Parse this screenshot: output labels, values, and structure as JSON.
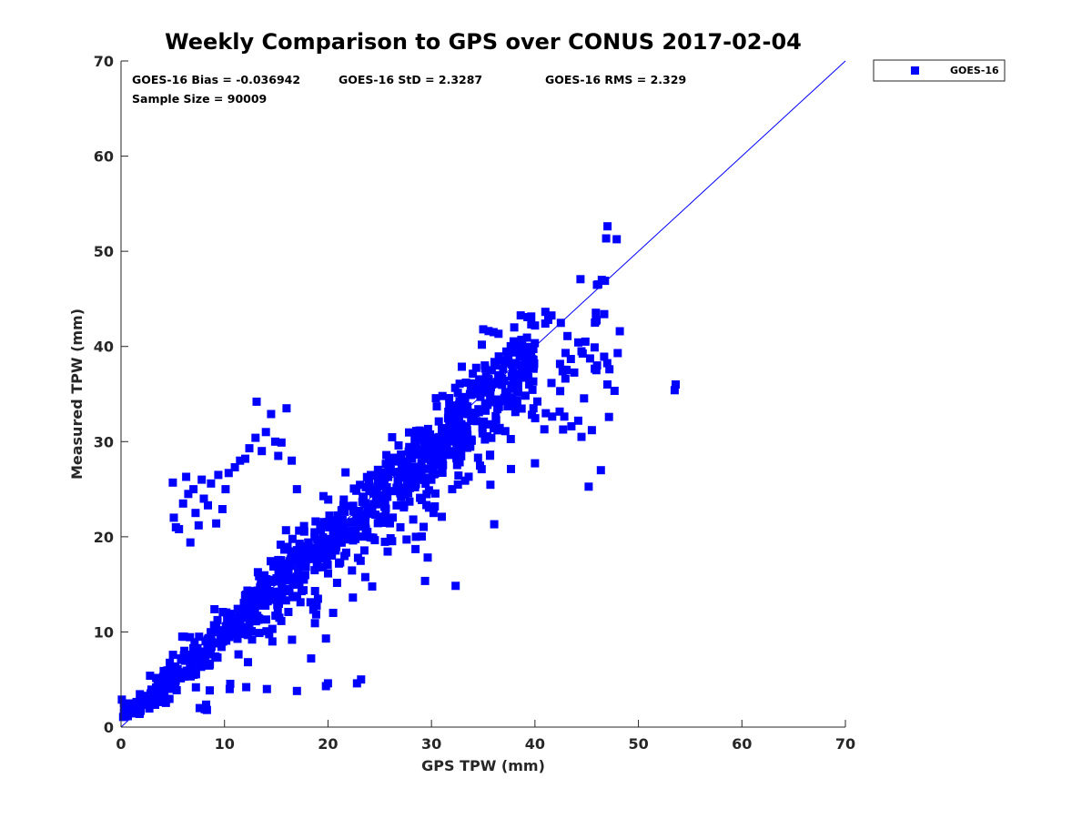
{
  "chart_data": {
    "type": "scatter",
    "title": "Weekly Comparison to GPS over CONUS 2017-02-04",
    "xlabel": "GPS TPW (mm)",
    "ylabel": "Measured TPW (mm)",
    "xlim": [
      0,
      70
    ],
    "ylim": [
      0,
      70
    ],
    "xticks": [
      "0",
      "10",
      "20",
      "30",
      "40",
      "50",
      "60",
      "70"
    ],
    "yticks": [
      "0",
      "10",
      "20",
      "30",
      "40",
      "50",
      "60",
      "70"
    ],
    "grid": false,
    "legend_position": "outside-top-right",
    "stats": {
      "bias": "GOES-16 Bias = -0.036942",
      "std": "GOES-16 StD = 2.3287",
      "rms": "GOES-16 RMS = 2.329",
      "sample_size": "Sample Size = 90009"
    },
    "reference_line": {
      "x": [
        0,
        70
      ],
      "y": [
        0,
        70
      ]
    },
    "series": [
      {
        "name": "GOES-16",
        "color": "#0000ff",
        "marker": "square",
        "clusters": [
          {
            "x_range": [
              0,
              40
            ],
            "slope": 0.96,
            "offset": 0.4,
            "spread": 1.6,
            "count": 900
          },
          {
            "x_range": [
              5,
              48
            ],
            "slope": 0.9,
            "offset": -0.5,
            "spread": 3.0,
            "count": 220
          }
        ],
        "points": [
          [
            5.0,
            25.7
          ],
          [
            5.1,
            22.0
          ],
          [
            5.3,
            21.0
          ],
          [
            5.6,
            20.8
          ],
          [
            6.0,
            23.5
          ],
          [
            6.3,
            26.3
          ],
          [
            6.5,
            24.5
          ],
          [
            6.7,
            19.4
          ],
          [
            7.0,
            25.0
          ],
          [
            7.2,
            22.5
          ],
          [
            7.5,
            21.2
          ],
          [
            7.8,
            26.0
          ],
          [
            8.0,
            24.0
          ],
          [
            8.4,
            23.3
          ],
          [
            8.7,
            25.6
          ],
          [
            9.2,
            21.4
          ],
          [
            9.4,
            26.5
          ],
          [
            9.8,
            22.9
          ],
          [
            10.1,
            25.0
          ],
          [
            10.4,
            26.7
          ],
          [
            11.0,
            27.3
          ],
          [
            11.5,
            28.0
          ],
          [
            12.0,
            28.2
          ],
          [
            12.4,
            29.3
          ],
          [
            13.0,
            30.4
          ],
          [
            13.1,
            34.2
          ],
          [
            13.6,
            29.0
          ],
          [
            14.0,
            31.0
          ],
          [
            14.5,
            32.9
          ],
          [
            14.9,
            30.0
          ],
          [
            15.2,
            28.5
          ],
          [
            15.5,
            29.9
          ],
          [
            16.0,
            33.5
          ],
          [
            16.5,
            28.0
          ],
          [
            17.0,
            25.0
          ],
          [
            7.6,
            2.0
          ],
          [
            8.3,
            1.8
          ],
          [
            10.5,
            4.0
          ],
          [
            12.1,
            4.2
          ],
          [
            14.1,
            4.0
          ],
          [
            17.0,
            3.8
          ],
          [
            19.8,
            4.3
          ],
          [
            20.0,
            4.6
          ],
          [
            22.8,
            4.6
          ],
          [
            23.2,
            5.0
          ],
          [
            19.8,
            9.3
          ],
          [
            20.5,
            12.0
          ],
          [
            27.0,
            21.0
          ],
          [
            28.5,
            20.0
          ],
          [
            30.2,
            22.5
          ],
          [
            31.0,
            22.1
          ],
          [
            32.0,
            25.0
          ],
          [
            44.5,
            30.5
          ],
          [
            45.5,
            31.2
          ],
          [
            46.0,
            38.0
          ],
          [
            47.0,
            36.0
          ],
          [
            48.0,
            39.3
          ],
          [
            48.2,
            41.6
          ],
          [
            46.7,
            43.4
          ],
          [
            45.8,
            42.5
          ],
          [
            53.5,
            35.4
          ],
          [
            53.6,
            36.0
          ],
          [
            41.0,
            42.4
          ],
          [
            40.0,
            42.2
          ],
          [
            38.0,
            42.0
          ],
          [
            35.0,
            41.8
          ],
          [
            36.0,
            41.5
          ],
          [
            47.2,
            37.6
          ]
        ]
      }
    ]
  }
}
